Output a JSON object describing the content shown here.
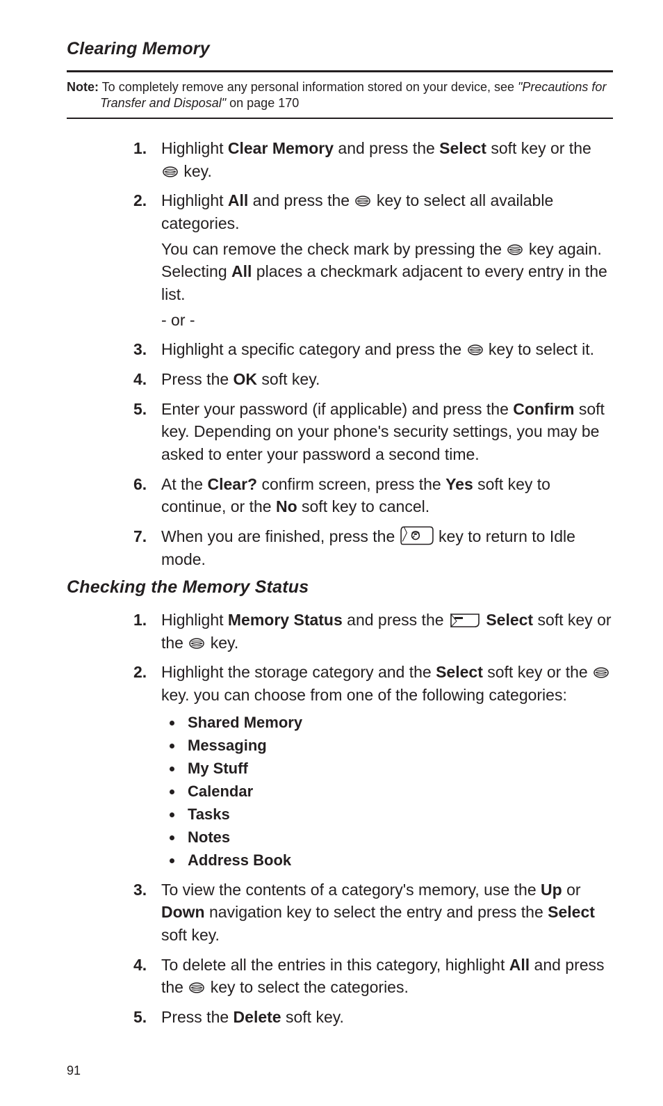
{
  "section1": {
    "heading": "Clearing Memory",
    "note": {
      "label": "Note:",
      "text_before_italic": " To completely remove any personal information stored on your device, see ",
      "italic": "\"Precautions for Transfer and Disposal\"",
      "text_after_italic": "  on page 170"
    },
    "steps": [
      {
        "num": "1.",
        "parts": [
          {
            "t": "Highlight "
          },
          {
            "t": "Clear Memory",
            "b": true
          },
          {
            "t": " and press the "
          },
          {
            "t": "Select",
            "b": true
          },
          {
            "t": " soft key or the "
          },
          {
            "icon": "disc"
          },
          {
            "t": " key."
          }
        ]
      },
      {
        "num": "2.",
        "parts": [
          {
            "t": "Highlight "
          },
          {
            "t": "All",
            "b": true
          },
          {
            "t": " and press the "
          },
          {
            "icon": "disc"
          },
          {
            "t": " key to select all available categories."
          }
        ],
        "sub": [
          [
            {
              "t": "You can remove the check mark by pressing the "
            },
            {
              "icon": "disc"
            },
            {
              "t": " key again. Selecting "
            },
            {
              "t": "All",
              "b": true
            },
            {
              "t": " places a checkmark adjacent to every entry in the list."
            }
          ],
          [
            {
              "t": "- or -"
            }
          ]
        ]
      },
      {
        "num": "3.",
        "parts": [
          {
            "t": "Highlight a specific category and press the "
          },
          {
            "icon": "disc"
          },
          {
            "t": " key to select it."
          }
        ]
      },
      {
        "num": "4.",
        "parts": [
          {
            "t": "Press the "
          },
          {
            "t": "OK",
            "b": true
          },
          {
            "t": " soft key."
          }
        ]
      },
      {
        "num": "5.",
        "parts": [
          {
            "t": "Enter your password (if applicable) and press the "
          },
          {
            "t": "Confirm",
            "b": true
          },
          {
            "t": " soft key. Depending on your phone's security settings, you may be asked to enter your password a second time."
          }
        ]
      },
      {
        "num": "6.",
        "parts": [
          {
            "t": "At the "
          },
          {
            "t": "Clear?",
            "b": true
          },
          {
            "t": " confirm screen, press the "
          },
          {
            "t": "Yes",
            "b": true
          },
          {
            "t": " soft key to continue, or the "
          },
          {
            "t": "No",
            "b": true
          },
          {
            "t": " soft key to cancel."
          }
        ]
      },
      {
        "num": "7.",
        "parts": [
          {
            "t": "When you are finished, press the  "
          },
          {
            "icon": "end-key"
          },
          {
            "t": "  key to return to Idle mode."
          }
        ]
      }
    ]
  },
  "section2": {
    "heading": "Checking the Memory Status",
    "steps": [
      {
        "num": "1.",
        "parts": [
          {
            "t": "Highlight "
          },
          {
            "t": "Memory Status",
            "b": true
          },
          {
            "t": " and press the "
          },
          {
            "icon": "soft-key-left"
          },
          {
            "t": "  "
          },
          {
            "t": "Select",
            "b": true
          },
          {
            "t": " soft key or the "
          },
          {
            "icon": "disc"
          },
          {
            "t": " key."
          }
        ]
      },
      {
        "num": "2.",
        "parts": [
          {
            "t": "Highlight the storage category and the "
          },
          {
            "t": "Select",
            "b": true
          },
          {
            "t": " soft key or the "
          },
          {
            "icon": "disc"
          },
          {
            "t": " key. you can choose from one of the following categories:"
          }
        ],
        "bullets": [
          "Shared Memory",
          "Messaging",
          "My Stuff",
          "Calendar",
          "Tasks",
          "Notes",
          "Address Book"
        ]
      },
      {
        "num": "3.",
        "parts": [
          {
            "t": "To view the contents of a category's memory, use the "
          },
          {
            "t": "Up",
            "b": true
          },
          {
            "t": " or "
          },
          {
            "t": "Down",
            "b": true
          },
          {
            "t": " navigation key to select the entry and press the "
          },
          {
            "t": "Select",
            "b": true
          },
          {
            "t": " soft key."
          }
        ]
      },
      {
        "num": "4.",
        "parts": [
          {
            "t": "To delete all the entries in this category, highlight "
          },
          {
            "t": "All",
            "b": true
          },
          {
            "t": " and press the "
          },
          {
            "icon": "disc"
          },
          {
            "t": " key to select the categories."
          }
        ]
      },
      {
        "num": "5.",
        "parts": [
          {
            "t": "Press the "
          },
          {
            "t": "Delete",
            "b": true
          },
          {
            "t": " soft key."
          }
        ]
      }
    ]
  },
  "pageNumber": "91",
  "icons": {
    "disc": "disc",
    "end-key": "end-key",
    "soft-key-left": "soft-key-left"
  },
  "colors": {
    "text": "#231f20",
    "bg": "#ffffff"
  }
}
